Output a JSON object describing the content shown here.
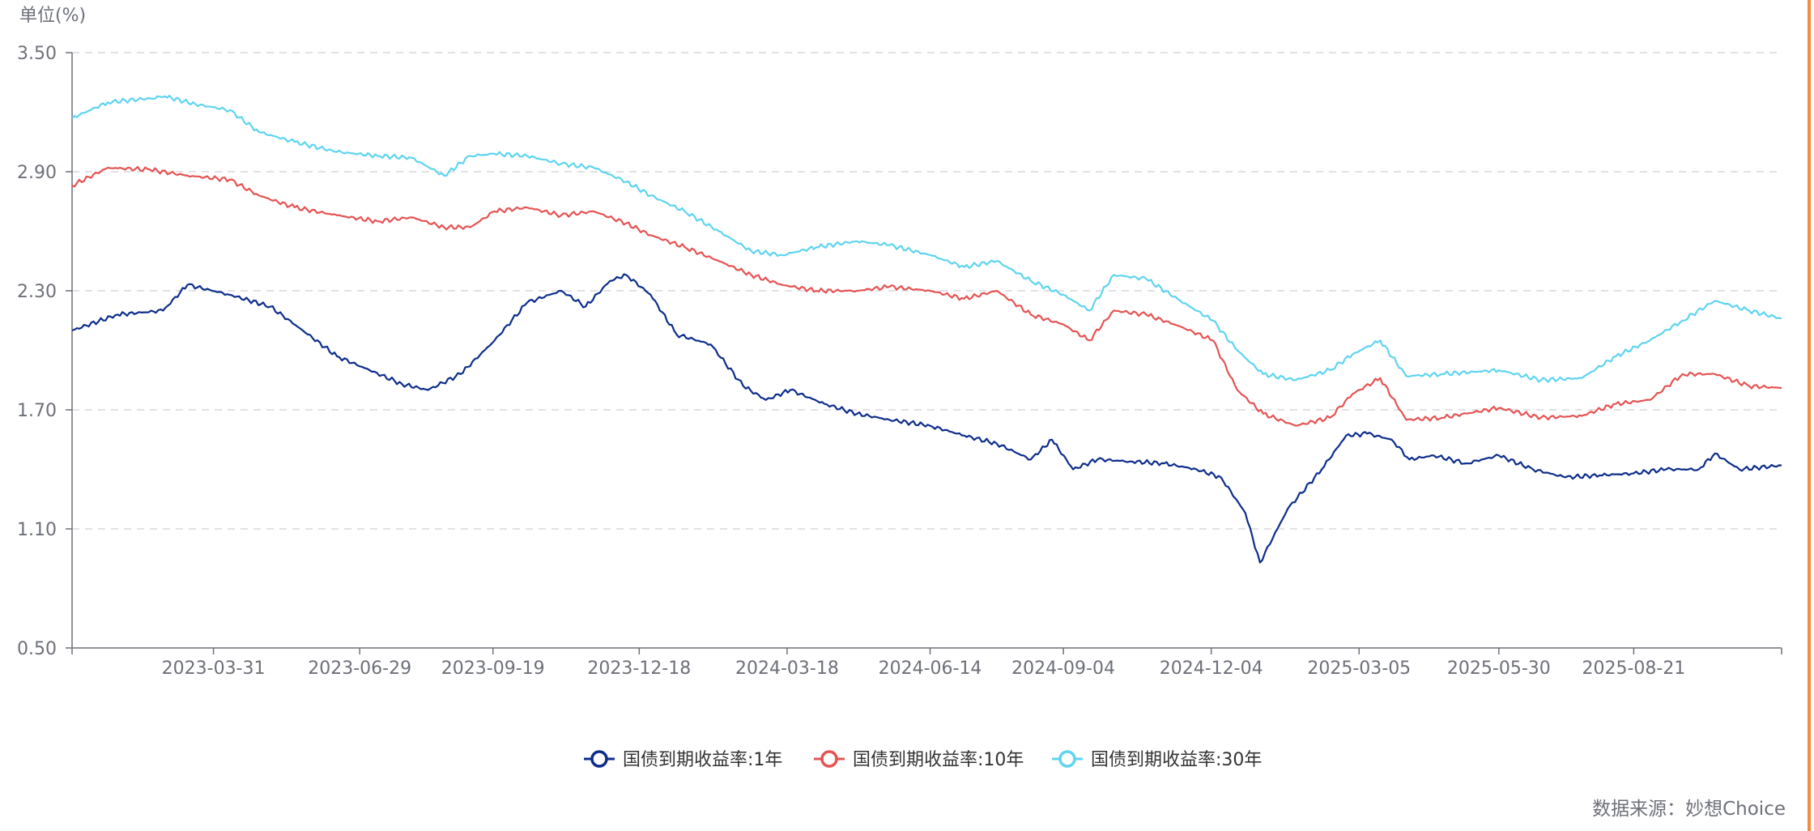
{
  "unit_label": "单位(%)",
  "source_label": "数据来源：妙想Choice",
  "colors": {
    "accent_edge": "#f5893f",
    "grid": "#d9d9de",
    "axis": "#6e7079"
  },
  "chart_data": {
    "type": "line",
    "title": "",
    "xlabel": "",
    "ylabel": "单位(%)",
    "ylim": [
      0.5,
      3.5
    ],
    "yticks": [
      "3.50",
      "2.90",
      "2.30",
      "1.70",
      "1.10",
      "0.50"
    ],
    "x_range": [
      "2023-01-03",
      "2025-11-20"
    ],
    "xticks": [
      "2023-03-31",
      "2023-06-29",
      "2023-09-19",
      "2023-12-18",
      "2024-03-18",
      "2024-06-14",
      "2024-09-04",
      "2024-12-04",
      "2025-03-05",
      "2025-05-30",
      "2025-08-21"
    ],
    "grid": true,
    "legend_position": "bottom-center",
    "series": [
      {
        "name": "国债到期收益率:1年",
        "color": "#0d2d8c",
        "x": [
          "2023-01-03",
          "2023-01-31",
          "2023-02-28",
          "2023-03-15",
          "2023-04-10",
          "2023-05-05",
          "2023-05-25",
          "2023-06-15",
          "2023-07-05",
          "2023-07-25",
          "2023-08-10",
          "2023-08-30",
          "2023-09-20",
          "2023-10-10",
          "2023-10-31",
          "2023-11-15",
          "2023-11-30",
          "2023-12-10",
          "2023-12-25",
          "2024-01-10",
          "2024-01-31",
          "2024-02-20",
          "2024-03-05",
          "2024-03-20",
          "2024-04-10",
          "2024-04-30",
          "2024-05-20",
          "2024-06-14",
          "2024-07-05",
          "2024-07-25",
          "2024-08-15",
          "2024-08-28",
          "2024-09-10",
          "2024-09-25",
          "2024-10-15",
          "2024-11-05",
          "2024-11-25",
          "2024-12-10",
          "2024-12-25",
          "2025-01-03",
          "2025-01-20",
          "2025-02-10",
          "2025-02-25",
          "2025-03-10",
          "2025-03-25",
          "2025-04-05",
          "2025-04-20",
          "2025-05-10",
          "2025-05-30",
          "2025-06-20",
          "2025-07-10",
          "2025-07-31",
          "2025-08-21",
          "2025-09-10",
          "2025-09-30",
          "2025-10-10",
          "2025-10-25",
          "2025-11-20"
        ],
        "values": [
          2.1,
          2.18,
          2.2,
          2.33,
          2.28,
          2.22,
          2.1,
          1.97,
          1.9,
          1.83,
          1.8,
          1.88,
          2.05,
          2.24,
          2.3,
          2.22,
          2.35,
          2.38,
          2.28,
          2.08,
          2.03,
          1.82,
          1.75,
          1.8,
          1.73,
          1.68,
          1.65,
          1.62,
          1.57,
          1.53,
          1.45,
          1.55,
          1.4,
          1.45,
          1.44,
          1.43,
          1.4,
          1.36,
          1.18,
          0.93,
          1.2,
          1.4,
          1.57,
          1.58,
          1.55,
          1.45,
          1.47,
          1.43,
          1.47,
          1.4,
          1.36,
          1.37,
          1.38,
          1.4,
          1.4,
          1.48,
          1.4,
          1.42
        ]
      },
      {
        "name": "国债到期收益率:10年",
        "color": "#e55353",
        "x": [
          "2023-01-03",
          "2023-01-25",
          "2023-02-20",
          "2023-03-15",
          "2023-04-10",
          "2023-04-28",
          "2023-05-20",
          "2023-06-15",
          "2023-07-10",
          "2023-07-31",
          "2023-08-20",
          "2023-09-05",
          "2023-09-20",
          "2023-10-10",
          "2023-10-31",
          "2023-11-20",
          "2023-12-10",
          "2023-12-25",
          "2024-01-15",
          "2024-02-05",
          "2024-02-25",
          "2024-03-15",
          "2024-04-05",
          "2024-04-30",
          "2024-05-20",
          "2024-06-14",
          "2024-07-05",
          "2024-07-25",
          "2024-08-15",
          "2024-09-04",
          "2024-09-20",
          "2024-10-05",
          "2024-10-25",
          "2024-11-15",
          "2024-12-05",
          "2024-12-20",
          "2025-01-05",
          "2025-01-25",
          "2025-02-15",
          "2025-03-01",
          "2025-03-18",
          "2025-04-03",
          "2025-04-25",
          "2025-05-30",
          "2025-06-25",
          "2025-07-20",
          "2025-08-10",
          "2025-08-31",
          "2025-09-20",
          "2025-10-10",
          "2025-10-31",
          "2025-11-20"
        ],
        "values": [
          2.83,
          2.92,
          2.91,
          2.88,
          2.86,
          2.78,
          2.72,
          2.68,
          2.65,
          2.67,
          2.62,
          2.62,
          2.7,
          2.72,
          2.68,
          2.7,
          2.64,
          2.58,
          2.52,
          2.45,
          2.38,
          2.33,
          2.3,
          2.3,
          2.32,
          2.3,
          2.26,
          2.3,
          2.18,
          2.13,
          2.05,
          2.2,
          2.18,
          2.12,
          2.05,
          1.8,
          1.68,
          1.62,
          1.66,
          1.78,
          1.86,
          1.65,
          1.66,
          1.71,
          1.66,
          1.67,
          1.73,
          1.75,
          1.88,
          1.88,
          1.82,
          1.81
        ]
      },
      {
        "name": "国债到期收益率:30年",
        "color": "#5ed4f0",
        "x": [
          "2023-01-03",
          "2023-01-25",
          "2023-02-20",
          "2023-03-01",
          "2023-03-20",
          "2023-04-10",
          "2023-04-28",
          "2023-05-20",
          "2023-06-15",
          "2023-07-10",
          "2023-07-31",
          "2023-08-20",
          "2023-09-05",
          "2023-09-20",
          "2023-10-10",
          "2023-10-31",
          "2023-11-20",
          "2023-12-10",
          "2023-12-25",
          "2024-01-15",
          "2024-02-05",
          "2024-02-25",
          "2024-03-15",
          "2024-04-05",
          "2024-04-30",
          "2024-05-20",
          "2024-06-14",
          "2024-07-05",
          "2024-07-25",
          "2024-08-15",
          "2024-09-04",
          "2024-09-20",
          "2024-10-05",
          "2024-10-25",
          "2024-11-15",
          "2024-12-05",
          "2024-12-20",
          "2025-01-05",
          "2025-01-25",
          "2025-02-15",
          "2025-03-01",
          "2025-03-18",
          "2025-04-03",
          "2025-04-25",
          "2025-05-30",
          "2025-06-25",
          "2025-07-20",
          "2025-08-10",
          "2025-08-31",
          "2025-09-20",
          "2025-10-10",
          "2025-10-31",
          "2025-11-20"
        ],
        "values": [
          3.17,
          3.25,
          3.27,
          3.28,
          3.24,
          3.21,
          3.1,
          3.05,
          3.0,
          2.98,
          2.97,
          2.88,
          2.98,
          2.99,
          2.98,
          2.94,
          2.92,
          2.85,
          2.78,
          2.7,
          2.6,
          2.5,
          2.48,
          2.52,
          2.55,
          2.53,
          2.48,
          2.42,
          2.45,
          2.35,
          2.28,
          2.2,
          2.38,
          2.36,
          2.25,
          2.15,
          2.0,
          1.88,
          1.85,
          1.9,
          1.98,
          2.05,
          1.87,
          1.88,
          1.9,
          1.85,
          1.86,
          1.97,
          2.05,
          2.15,
          2.25,
          2.2,
          2.16
        ]
      }
    ]
  }
}
